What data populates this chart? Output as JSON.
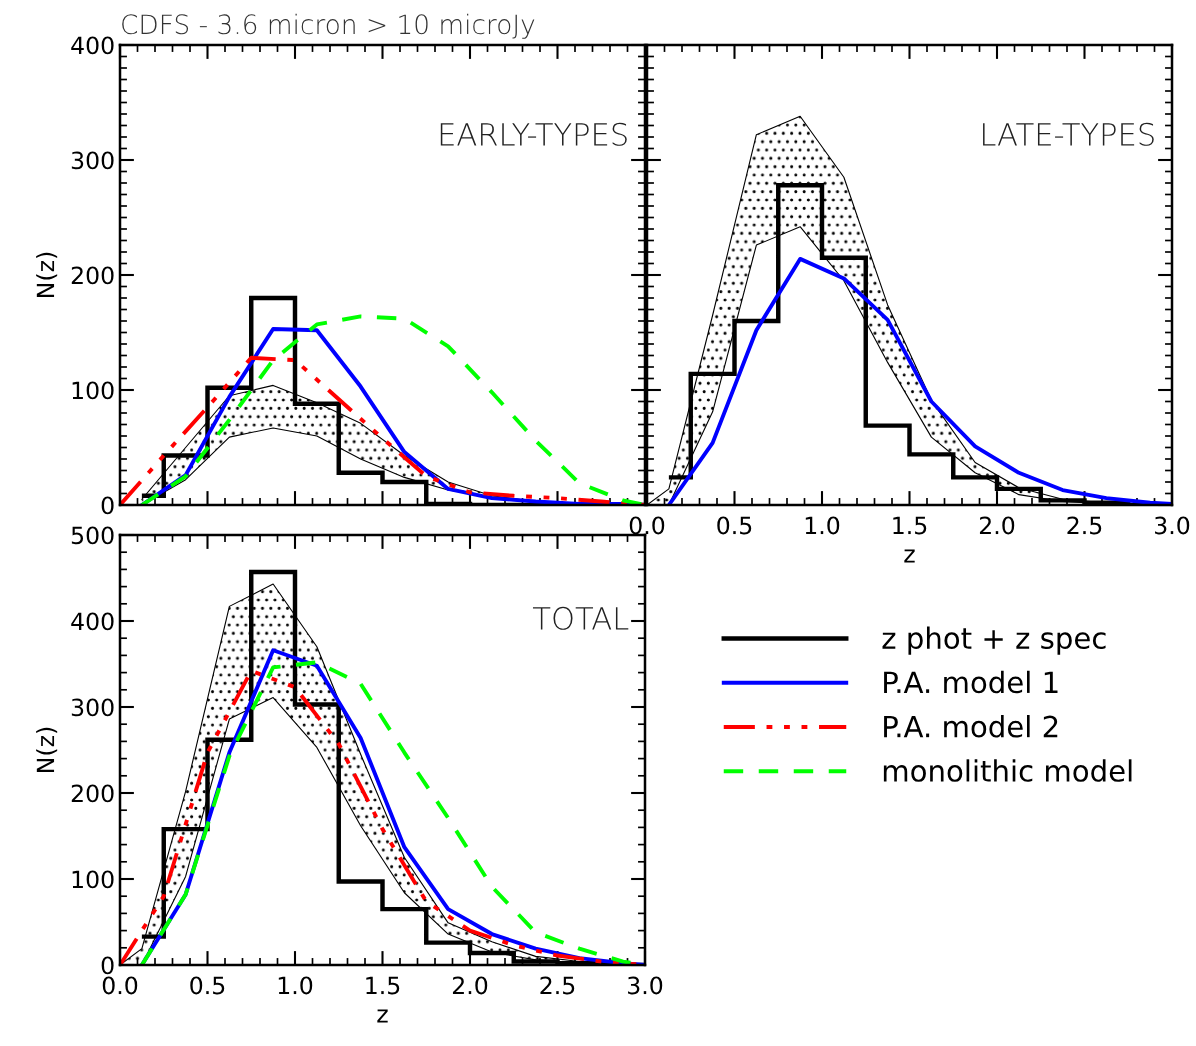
{
  "chart_data": [
    {
      "type": "line",
      "title": "CDFS - 3.6 micron > 10 microJy",
      "ylabel": "N(z)",
      "annotations": [
        "EARLY-TYPES"
      ],
      "xlim": [
        0,
        3
      ],
      "xticks": [
        0,
        0.5,
        1,
        1.5,
        2,
        2.5,
        3
      ],
      "ylim": [
        0,
        400
      ],
      "yticks": [
        0,
        100,
        200,
        300,
        400
      ],
      "tick_labels": "y",
      "grid": false,
      "legend": false,
      "series": [
        {
          "type": "area",
          "color": "#000000",
          "x": [
            0.125,
            0.375,
            0.625,
            0.875,
            1.125,
            1.375,
            1.625,
            1.875,
            2.125,
            2.375,
            2.625,
            2.875
          ],
          "values": [
            5,
            50,
            95,
            104,
            89,
            71,
            43,
            20,
            8,
            3,
            1,
            0
          ]
        },
        {
          "color": "#000000",
          "x": [
            0.125,
            0.375,
            0.625,
            0.875,
            1.125,
            1.375,
            1.625,
            1.875,
            2.125,
            2.375,
            2.625,
            2.875
          ],
          "values": [
            0,
            22,
            59,
            67,
            60,
            40,
            24,
            13,
            7,
            3,
            1,
            0
          ]
        },
        {
          "type": "histogram",
          "color": "#000000",
          "bins": [
            0.125,
            0.25,
            0.5,
            0.75,
            1.0,
            1.25,
            1.5,
            1.75,
            2.0,
            2.25,
            2.5,
            2.75,
            3.0
          ],
          "values": [
            8,
            43,
            102,
            180,
            88,
            28,
            20,
            1,
            0,
            0,
            0,
            0
          ]
        },
        {
          "color": "#0000ff",
          "line_style": "solid",
          "x": [
            0.125,
            0.375,
            0.625,
            0.875,
            1.125,
            1.375,
            1.625,
            1.875,
            2.125,
            2.375,
            2.625,
            2.875,
            3.0
          ],
          "values": [
            0,
            26,
            94,
            153,
            152,
            103,
            46,
            14,
            6,
            3,
            1,
            1,
            0
          ]
        },
        {
          "color": "#ff0000",
          "line_style": "dashdot",
          "x": [
            0,
            0.25,
            0.5,
            0.75,
            1.0,
            1.25,
            1.5,
            1.75,
            2.0,
            2.25,
            2.5,
            2.75,
            3.0
          ],
          "values": [
            0,
            43,
            85,
            128,
            126,
            92,
            58,
            25,
            11,
            8,
            6,
            3,
            0
          ]
        },
        {
          "color": "#00ff00",
          "line_style": "dashed",
          "x": [
            0.125,
            0.375,
            0.625,
            0.875,
            1.125,
            1.375,
            1.625,
            1.875,
            2.125,
            2.375,
            2.625,
            2.875,
            3.0
          ],
          "values": [
            0,
            25,
            74,
            126,
            157,
            164,
            162,
            138,
            98,
            56,
            19,
            4,
            0
          ]
        }
      ]
    },
    {
      "type": "line",
      "xlabel": "z",
      "annotations": [
        "LATE-TYPES"
      ],
      "xlim": [
        0,
        3
      ],
      "xticks": [
        {
          "value": 0,
          "label": "0.0"
        },
        0.5,
        {
          "value": 1,
          "label": "1.0"
        },
        1.5,
        {
          "value": 2,
          "label": "2.0"
        },
        2.5,
        {
          "value": 3,
          "label": "3.0"
        }
      ],
      "ylim": [
        0,
        400
      ],
      "yticks": [
        0,
        100,
        200,
        300,
        400
      ],
      "tick_labels": "x",
      "grid": false,
      "legend": false,
      "series": [
        {
          "type": "area",
          "color": "#000000",
          "x": [
            0,
            0.125,
            0.375,
            0.625,
            0.875,
            1.125,
            1.375,
            1.625,
            1.875,
            2.125,
            2.375,
            2.625,
            2.875
          ],
          "values": [
            0,
            14,
            165,
            322,
            338,
            285,
            174,
            91,
            37,
            15,
            5,
            2,
            0
          ]
        },
        {
          "color": "#000000",
          "x": [
            0,
            0.125,
            0.375,
            0.625,
            0.875,
            1.125,
            1.375,
            1.625,
            1.875,
            2.125,
            2.375,
            2.625,
            2.875
          ],
          "values": [
            0,
            0,
            81,
            226,
            242,
            195,
            124,
            59,
            28,
            9,
            3,
            1,
            0
          ]
        },
        {
          "type": "histogram",
          "color": "#000000",
          "bins": [
            0.125,
            0.25,
            0.5,
            0.75,
            1.0,
            1.25,
            1.5,
            1.75,
            2.0,
            2.25,
            2.5,
            2.75,
            3.0
          ],
          "values": [
            24,
            114,
            160,
            278,
            215,
            69,
            44,
            24,
            14,
            4,
            2,
            0
          ]
        },
        {
          "color": "#0000ff",
          "line_style": "solid",
          "x": [
            0.125,
            0.375,
            0.625,
            0.875,
            1.125,
            1.375,
            1.625,
            1.875,
            2.125,
            2.375,
            2.625,
            2.875,
            3.0
          ],
          "values": [
            0,
            54,
            152,
            214,
            197,
            161,
            90,
            51,
            28,
            13,
            6,
            2,
            1
          ]
        }
      ]
    },
    {
      "type": "line",
      "xlabel": "z",
      "ylabel": "N(z)",
      "annotations": [
        "TOTAL"
      ],
      "xlim": [
        0,
        3
      ],
      "xticks": [
        {
          "value": 0,
          "label": "0.0"
        },
        0.5,
        {
          "value": 1,
          "label": "1.0"
        },
        1.5,
        {
          "value": 2,
          "label": "2.0"
        },
        2.5,
        {
          "value": 3,
          "label": "3.0"
        }
      ],
      "ylim": [
        0,
        500
      ],
      "yticks": [
        0,
        100,
        200,
        300,
        400,
        500
      ],
      "grid": false,
      "legend": "right",
      "series": [
        {
          "type": "area",
          "color": "#000000",
          "x": [
            0,
            0.125,
            0.375,
            0.625,
            0.875,
            1.125,
            1.375,
            1.625,
            1.875,
            2.125,
            2.375,
            2.625,
            2.875
          ],
          "values": [
            0,
            19,
            202,
            417,
            443,
            370,
            245,
            125,
            49,
            27,
            10,
            4,
            1
          ]
        },
        {
          "color": "#000000",
          "x": [
            0,
            0.125,
            0.375,
            0.625,
            0.875,
            1.125,
            1.375,
            1.625,
            1.875,
            2.125,
            2.375,
            2.625,
            2.875
          ],
          "values": [
            0,
            0,
            103,
            286,
            311,
            253,
            162,
            84,
            36,
            15,
            6,
            2,
            0
          ]
        },
        {
          "type": "histogram",
          "name": "z phot + z spec",
          "color": "#000000",
          "bins": [
            0.125,
            0.25,
            0.5,
            0.75,
            1.0,
            1.25,
            1.5,
            1.75,
            2.0,
            2.25,
            2.5,
            2.75,
            3.0
          ],
          "values": [
            33,
            158,
            262,
            457,
            303,
            97,
            65,
            26,
            14,
            4,
            2,
            0
          ]
        },
        {
          "name": "P.A. model 1",
          "color": "#0000ff",
          "line_style": "solid",
          "x": [
            0.125,
            0.375,
            0.625,
            0.875,
            1.125,
            1.375,
            1.625,
            1.875,
            2.125,
            2.375,
            2.625,
            2.875,
            3.0
          ],
          "values": [
            0,
            82,
            247,
            366,
            348,
            264,
            137,
            65,
            36,
            19,
            8,
            2,
            0
          ]
        },
        {
          "name": "P.A. model 2",
          "color": "#ff0000",
          "line_style": "dashdot",
          "x": [
            0,
            0.25,
            0.5,
            0.75,
            1.0,
            1.25,
            1.5,
            1.75,
            2.0,
            2.25,
            2.5,
            2.75,
            3.0
          ],
          "values": [
            0,
            80,
            247,
            342,
            323,
            257,
            158,
            74,
            40,
            23,
            11,
            4,
            0
          ]
        },
        {
          "name": "monolithic model",
          "color": "#00ff00",
          "line_style": "dashed",
          "x": [
            0.125,
            0.375,
            0.625,
            0.875,
            1.125,
            1.375,
            1.625,
            1.875,
            2.125,
            2.375,
            2.625,
            2.875,
            3.0
          ],
          "values": [
            0,
            82,
            243,
            346,
            352,
            327,
            247,
            171,
            91,
            38,
            19,
            4,
            0
          ]
        }
      ]
    }
  ]
}
